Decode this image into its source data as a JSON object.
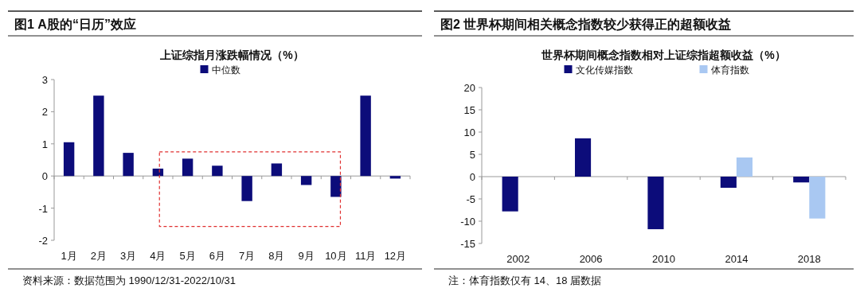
{
  "chart_data": [
    {
      "type": "bar",
      "title": "图1 A股的“日历”效应",
      "subtitle": "上证综指月涨跌幅情况（%）",
      "categories": [
        "1月",
        "2月",
        "3月",
        "4月",
        "5月",
        "6月",
        "7月",
        "8月",
        "9月",
        "10月",
        "11月",
        "12月"
      ],
      "series": [
        {
          "name": "中位数",
          "color": "#0c0c7a",
          "values": [
            1.05,
            2.5,
            0.72,
            0.23,
            0.54,
            0.32,
            -0.78,
            0.39,
            -0.28,
            -0.65,
            2.5,
            -0.08
          ]
        }
      ],
      "ylim": [
        -2,
        3
      ],
      "yticks": [
        -2,
        -1,
        0,
        1,
        2,
        3
      ],
      "legend": "top",
      "annotations": [
        "资料来源：数据范围为 1990/12/31-2022/10/31"
      ]
    },
    {
      "type": "bar",
      "title": "图2 世界杯期间相关概念指数较少获得正的超额收益",
      "subtitle": "世界杯期间概念指数相对上证综指超额收益（%）",
      "categories": [
        "2002",
        "2006",
        "2010",
        "2014",
        "2018"
      ],
      "series": [
        {
          "name": "文化传媒指数",
          "color": "#0c0c7a",
          "values": [
            -7.8,
            8.6,
            -11.8,
            -2.5,
            -1.3
          ]
        },
        {
          "name": "体育指数",
          "color": "#a9c8f2",
          "values": [
            null,
            null,
            null,
            4.3,
            -9.4
          ]
        }
      ],
      "ylim": [
        -15,
        20
      ],
      "yticks": [
        -15,
        -10,
        -5,
        0,
        5,
        10,
        15,
        20
      ],
      "legend": "top",
      "annotations": [
        "注：体育指数仅有 14、18 届数据"
      ]
    }
  ]
}
